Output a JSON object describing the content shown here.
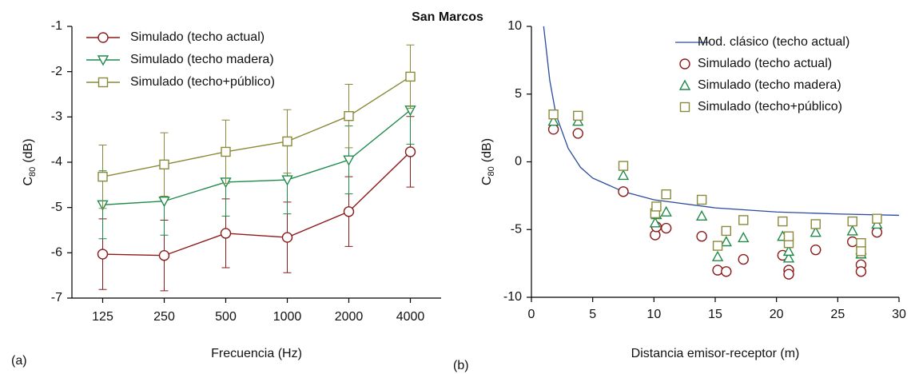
{
  "title": "San Marcos",
  "chart_data": [
    {
      "type": "line",
      "panel_label": "(a)",
      "xlabel": "Frecuencia (Hz)",
      "ylabel": {
        "symbol": "C",
        "subscript": "80",
        "unit": "(dB)"
      },
      "categories": [
        "125",
        "250",
        "500",
        "1000",
        "2000",
        "4000"
      ],
      "ylim": [
        -7,
        -1
      ],
      "yticks": [
        -7,
        -6,
        -5,
        -4,
        -3,
        -2,
        -1
      ],
      "series": [
        {
          "name": "Simulado (techo actual)",
          "color": "#8b1a1a",
          "marker": "circle",
          "values": [
            -6.03,
            -6.06,
            -5.57,
            -5.66,
            -5.09,
            -3.77
          ],
          "errors": [
            0.78,
            0.78,
            0.76,
            0.78,
            0.77,
            0.78
          ]
        },
        {
          "name": "Simulado (techo madera)",
          "color": "#1e8a4a",
          "marker": "triangle-down",
          "values": [
            -4.94,
            -4.86,
            -4.44,
            -4.39,
            -3.95,
            -2.85
          ],
          "errors": [
            0.75,
            0.75,
            0.75,
            0.75,
            0.75,
            0.75
          ]
        },
        {
          "name": "Simulado (techo+público)",
          "color": "#8a8a3a",
          "marker": "square",
          "values": [
            -4.32,
            -4.05,
            -3.77,
            -3.54,
            -2.98,
            -2.11
          ],
          "errors": [
            0.7,
            0.7,
            0.7,
            0.7,
            0.7,
            0.7
          ]
        }
      ]
    },
    {
      "type": "scatter",
      "panel_label": "(b)",
      "xlabel": "Distancia emisor-receptor (m)",
      "ylabel": {
        "symbol": "C",
        "subscript": "80",
        "unit": "(dB)"
      },
      "xlim": [
        0,
        30
      ],
      "xticks": [
        0,
        5,
        10,
        15,
        20,
        25,
        30
      ],
      "ylim": [
        -10,
        10
      ],
      "yticks": [
        -10,
        -5,
        0,
        5,
        10
      ],
      "series": [
        {
          "name": "Mod. clásico (techo actual)",
          "color": "#2a4aa0",
          "marker": "line",
          "x": [
            1,
            1.5,
            2,
            3,
            4,
            5,
            7.5,
            10,
            15,
            20,
            25,
            30
          ],
          "values": [
            10,
            6,
            3.5,
            1,
            -0.4,
            -1.2,
            -2.2,
            -2.8,
            -3.4,
            -3.7,
            -3.85,
            -3.95
          ]
        },
        {
          "name": "Simulado (techo actual)",
          "color": "#8b1a1a",
          "marker": "circle",
          "x": [
            1.8,
            3.8,
            7.5,
            10.1,
            10.2,
            11,
            13.9,
            15.2,
            15.9,
            17.3,
            20.5,
            21,
            21,
            23.2,
            26.2,
            26.9,
            26.9,
            28.2
          ],
          "values": [
            2.4,
            2.1,
            -2.2,
            -5.4,
            -4.8,
            -4.9,
            -5.5,
            -8,
            -8.1,
            -7.2,
            -6.9,
            -8,
            -8.3,
            -6.5,
            -5.9,
            -7.6,
            -8.1,
            -5.2
          ]
        },
        {
          "name": "Simulado (techo madera)",
          "color": "#1e8a4a",
          "marker": "triangle-up",
          "x": [
            1.8,
            3.8,
            7.5,
            10.1,
            10.2,
            11,
            13.9,
            15.2,
            15.9,
            17.3,
            20.5,
            21,
            21,
            23.2,
            26.2,
            26.9,
            26.9,
            28.2
          ],
          "values": [
            3.0,
            3.0,
            -1.0,
            -4.5,
            -3.9,
            -3.7,
            -4.0,
            -7.0,
            -5.9,
            -5.6,
            -5.5,
            -7.1,
            -6.6,
            -5.2,
            -5.1,
            -6.8,
            -6.5,
            -4.6
          ]
        },
        {
          "name": "Simulado (techo+público)",
          "color": "#8a8a3a",
          "marker": "square",
          "x": [
            1.8,
            3.8,
            7.5,
            10.1,
            10.2,
            11,
            13.9,
            15.2,
            15.9,
            17.3,
            20.5,
            21,
            21,
            23.2,
            26.2,
            26.9,
            26.9,
            28.2
          ],
          "values": [
            3.5,
            3.4,
            -0.3,
            -3.8,
            -3.3,
            -2.4,
            -2.8,
            -6.2,
            -5.1,
            -4.3,
            -4.4,
            -6.0,
            -5.5,
            -4.6,
            -4.4,
            -6.0,
            -6.6,
            -4.2
          ]
        }
      ]
    }
  ]
}
